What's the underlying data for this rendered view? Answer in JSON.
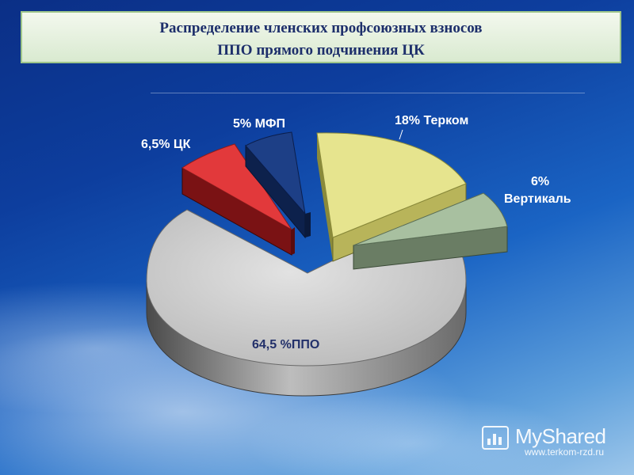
{
  "title": {
    "line1": "Распределение членских профсоюзных взносов",
    "line2": "ППО прямого подчинения ЦК"
  },
  "chart_data": {
    "type": "pie",
    "title": "Распределение членских профсоюзных взносов ППО прямого подчинения ЦК",
    "slices": [
      {
        "label": "64,5 %ППО",
        "value": 64.5,
        "color": "#c8c8c8"
      },
      {
        "label": "6,5% ЦК",
        "value": 6.5,
        "color": "#e2393b"
      },
      {
        "label": "5% МФП",
        "value": 5,
        "color": "#1d3f86"
      },
      {
        "label": "18% Терком",
        "value": 18,
        "color": "#e6e48e"
      },
      {
        "label": "6%",
        "label2": "Вертикаль",
        "value": 6,
        "color": "#a8c0a0"
      }
    ]
  },
  "watermark": {
    "name": "MyShared",
    "url": "www.terkom-rzd.ru"
  }
}
